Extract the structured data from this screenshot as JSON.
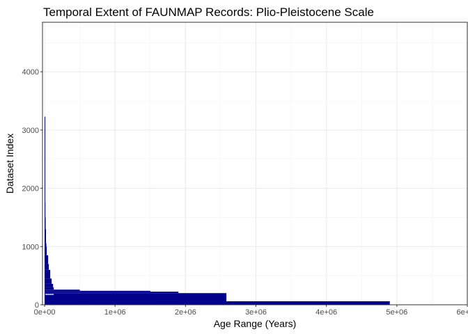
{
  "chart_data": {
    "type": "range-bar",
    "title": "Temporal Extent of FAUNMAP Records: Plio-Pleistocene Scale",
    "xlabel": "Age Range (Years)",
    "ylabel": "Dataset Index",
    "xlim": [
      -30000,
      6000000
    ],
    "ylim": [
      0,
      4850
    ],
    "x_ticks": [
      {
        "value": 0,
        "label": "0e+00"
      },
      {
        "value": 1000000,
        "label": "1e+06"
      },
      {
        "value": 2000000,
        "label": "2e+06"
      },
      {
        "value": 3000000,
        "label": "3e+06"
      },
      {
        "value": 4000000,
        "label": "4e+06"
      },
      {
        "value": 5000000,
        "label": "5e+06"
      },
      {
        "value": 6000000,
        "label": "6e+06"
      }
    ],
    "y_ticks": [
      {
        "value": 0,
        "label": "0"
      },
      {
        "value": 1000,
        "label": "1000"
      },
      {
        "value": 2000,
        "label": "2000"
      },
      {
        "value": 3000,
        "label": "3000"
      },
      {
        "value": 4000,
        "label": "4000"
      }
    ],
    "grid": true,
    "bar_color": "#00008B",
    "ranges": [
      {
        "start": 0,
        "end": 4900000,
        "y_min": 0,
        "y_max": 60
      },
      {
        "start": 0,
        "end": 2580000,
        "y_min": 60,
        "y_max": 200
      },
      {
        "start": 0,
        "end": 1900000,
        "y_min": 200,
        "y_max": 225
      },
      {
        "start": 0,
        "end": 1500000,
        "y_min": 225,
        "y_max": 240
      },
      {
        "start": 0,
        "end": 500000,
        "y_min": 240,
        "y_max": 260
      },
      {
        "start": 0,
        "end": 130000,
        "y_min": 260,
        "y_max": 300
      },
      {
        "start": 0,
        "end": 120000,
        "y_min": 300,
        "y_max": 360
      },
      {
        "start": 0,
        "end": 100000,
        "y_min": 360,
        "y_max": 450
      },
      {
        "start": 0,
        "end": 80000,
        "y_min": 450,
        "y_max": 600
      },
      {
        "start": 0,
        "end": 60000,
        "y_min": 600,
        "y_max": 700
      },
      {
        "start": 0,
        "end": 50000,
        "y_min": 700,
        "y_max": 850
      },
      {
        "start": 0,
        "end": 30000,
        "y_min": 850,
        "y_max": 1000
      },
      {
        "start": 0,
        "end": 25000,
        "y_min": 1000,
        "y_max": 1060
      },
      {
        "start": 0,
        "end": 20000,
        "y_min": 1060,
        "y_max": 1300
      },
      {
        "start": 0,
        "end": 15000,
        "y_min": 1300,
        "y_max": 1500
      },
      {
        "start": 0,
        "end": 12000,
        "y_min": 1500,
        "y_max": 1760
      },
      {
        "start": 0,
        "end": 10000,
        "y_min": 1760,
        "y_max": 2300
      },
      {
        "start": 0,
        "end": 8000,
        "y_min": 2300,
        "y_max": 3230
      }
    ],
    "gaps": [
      {
        "start": 0,
        "end": 130000,
        "y_min": 170,
        "y_max": 185
      }
    ]
  }
}
